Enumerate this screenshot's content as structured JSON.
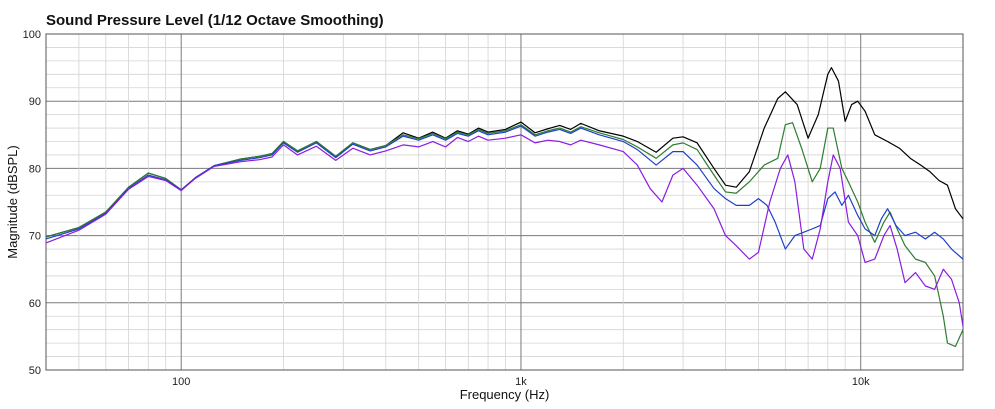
{
  "chart_data": {
    "type": "line",
    "title": "Sound Pressure Level (1/12 Octave Smoothing)",
    "xlabel": "Frequency (Hz)",
    "ylabel": "Magnitude (dBSPL)",
    "x_scale": "log",
    "xlim": [
      40,
      20000
    ],
    "ylim": [
      50,
      100
    ],
    "grid": true,
    "x_tick_labels": [
      {
        "value": 100,
        "label": "100"
      },
      {
        "value": 1000,
        "label": "1k"
      },
      {
        "value": 10000,
        "label": "10k"
      }
    ],
    "y_tick_labels": [
      {
        "value": 50,
        "label": "50"
      },
      {
        "value": 60,
        "label": "60"
      },
      {
        "value": 70,
        "label": "70"
      },
      {
        "value": 80,
        "label": "80"
      },
      {
        "value": 90,
        "label": "90"
      },
      {
        "value": 100,
        "label": "100"
      }
    ],
    "series": [
      {
        "color": "#000000",
        "points": [
          [
            40,
            69.8
          ],
          [
            50,
            71.2
          ],
          [
            60,
            73.5
          ],
          [
            70,
            77.2
          ],
          [
            80,
            79.3
          ],
          [
            90,
            78.5
          ],
          [
            100,
            76.8
          ],
          [
            110,
            78.6
          ],
          [
            125,
            80.4
          ],
          [
            150,
            81.4
          ],
          [
            170,
            81.8
          ],
          [
            185,
            82.2
          ],
          [
            200,
            84.0
          ],
          [
            220,
            82.6
          ],
          [
            250,
            84.0
          ],
          [
            285,
            81.8
          ],
          [
            320,
            83.8
          ],
          [
            360,
            82.8
          ],
          [
            400,
            83.4
          ],
          [
            450,
            85.3
          ],
          [
            500,
            84.5
          ],
          [
            550,
            85.4
          ],
          [
            600,
            84.5
          ],
          [
            650,
            85.6
          ],
          [
            700,
            85.1
          ],
          [
            750,
            86.0
          ],
          [
            800,
            85.4
          ],
          [
            900,
            85.8
          ],
          [
            1000,
            86.9
          ],
          [
            1100,
            85.3
          ],
          [
            1200,
            85.9
          ],
          [
            1300,
            86.4
          ],
          [
            1400,
            85.8
          ],
          [
            1500,
            86.7
          ],
          [
            1700,
            85.6
          ],
          [
            2000,
            84.8
          ],
          [
            2200,
            84.0
          ],
          [
            2500,
            82.4
          ],
          [
            2800,
            84.5
          ],
          [
            3000,
            84.7
          ],
          [
            3300,
            83.8
          ],
          [
            3700,
            80.0
          ],
          [
            4000,
            77.5
          ],
          [
            4300,
            77.2
          ],
          [
            4700,
            79.5
          ],
          [
            5200,
            86.0
          ],
          [
            5700,
            90.4
          ],
          [
            6000,
            91.4
          ],
          [
            6500,
            89.5
          ],
          [
            7000,
            84.5
          ],
          [
            7500,
            88.0
          ],
          [
            8000,
            94.0
          ],
          [
            8200,
            95.0
          ],
          [
            8600,
            93.0
          ],
          [
            9000,
            87.0
          ],
          [
            9400,
            89.5
          ],
          [
            9800,
            90.0
          ],
          [
            10300,
            88.5
          ],
          [
            11000,
            85.0
          ],
          [
            12000,
            84.0
          ],
          [
            13000,
            83.0
          ],
          [
            14000,
            81.5
          ],
          [
            15000,
            80.5
          ],
          [
            16000,
            79.5
          ],
          [
            17000,
            78.2
          ],
          [
            18000,
            77.5
          ],
          [
            19000,
            74.0
          ],
          [
            20000,
            72.5
          ]
        ]
      },
      {
        "color": "#2e7d32",
        "points": [
          [
            40,
            69.8
          ],
          [
            50,
            71.2
          ],
          [
            60,
            73.5
          ],
          [
            70,
            77.2
          ],
          [
            80,
            79.3
          ],
          [
            90,
            78.5
          ],
          [
            100,
            76.8
          ],
          [
            110,
            78.6
          ],
          [
            125,
            80.4
          ],
          [
            150,
            81.4
          ],
          [
            170,
            81.8
          ],
          [
            185,
            82.2
          ],
          [
            200,
            84.0
          ],
          [
            220,
            82.6
          ],
          [
            250,
            84.0
          ],
          [
            285,
            81.8
          ],
          [
            320,
            83.8
          ],
          [
            360,
            82.8
          ],
          [
            400,
            83.4
          ],
          [
            450,
            85.0
          ],
          [
            500,
            84.4
          ],
          [
            550,
            85.2
          ],
          [
            600,
            84.4
          ],
          [
            650,
            85.4
          ],
          [
            700,
            85.0
          ],
          [
            750,
            85.8
          ],
          [
            800,
            85.2
          ],
          [
            900,
            85.6
          ],
          [
            1000,
            86.5
          ],
          [
            1100,
            85.0
          ],
          [
            1200,
            85.6
          ],
          [
            1300,
            86.0
          ],
          [
            1400,
            85.4
          ],
          [
            1500,
            86.2
          ],
          [
            1700,
            85.3
          ],
          [
            2000,
            84.3
          ],
          [
            2200,
            83.2
          ],
          [
            2500,
            81.5
          ],
          [
            2800,
            83.5
          ],
          [
            3000,
            83.8
          ],
          [
            3300,
            82.8
          ],
          [
            3700,
            79.0
          ],
          [
            4000,
            76.5
          ],
          [
            4300,
            76.3
          ],
          [
            4700,
            78.0
          ],
          [
            5200,
            80.5
          ],
          [
            5700,
            81.5
          ],
          [
            6000,
            86.5
          ],
          [
            6300,
            86.8
          ],
          [
            6700,
            83.0
          ],
          [
            7200,
            78.0
          ],
          [
            7600,
            80.0
          ],
          [
            8000,
            86.0
          ],
          [
            8300,
            86.0
          ],
          [
            8800,
            80.0
          ],
          [
            9200,
            78.0
          ],
          [
            9800,
            75.0
          ],
          [
            10300,
            72.0
          ],
          [
            11000,
            69.0
          ],
          [
            11700,
            72.0
          ],
          [
            12200,
            73.5
          ],
          [
            12800,
            71.0
          ],
          [
            13500,
            68.5
          ],
          [
            14500,
            66.5
          ],
          [
            15500,
            66.0
          ],
          [
            16500,
            64.0
          ],
          [
            17000,
            61.0
          ],
          [
            17500,
            58.0
          ],
          [
            18000,
            54.0
          ],
          [
            19000,
            53.5
          ],
          [
            20000,
            56.0
          ]
        ]
      },
      {
        "color": "#1e40c8",
        "points": [
          [
            40,
            69.5
          ],
          [
            50,
            71.0
          ],
          [
            60,
            73.3
          ],
          [
            70,
            77.0
          ],
          [
            80,
            79.0
          ],
          [
            90,
            78.3
          ],
          [
            100,
            76.8
          ],
          [
            110,
            78.6
          ],
          [
            125,
            80.4
          ],
          [
            150,
            81.2
          ],
          [
            170,
            81.6
          ],
          [
            185,
            82.0
          ],
          [
            200,
            83.8
          ],
          [
            220,
            82.4
          ],
          [
            250,
            83.8
          ],
          [
            285,
            81.6
          ],
          [
            320,
            83.6
          ],
          [
            360,
            82.6
          ],
          [
            400,
            83.2
          ],
          [
            450,
            84.8
          ],
          [
            500,
            84.2
          ],
          [
            550,
            85.0
          ],
          [
            600,
            84.2
          ],
          [
            650,
            85.2
          ],
          [
            700,
            84.8
          ],
          [
            750,
            85.6
          ],
          [
            800,
            85.0
          ],
          [
            900,
            85.4
          ],
          [
            1000,
            86.3
          ],
          [
            1100,
            84.8
          ],
          [
            1200,
            85.4
          ],
          [
            1300,
            85.8
          ],
          [
            1400,
            85.2
          ],
          [
            1500,
            86.0
          ],
          [
            1700,
            85.0
          ],
          [
            2000,
            84.0
          ],
          [
            2200,
            82.8
          ],
          [
            2500,
            80.5
          ],
          [
            2800,
            82.5
          ],
          [
            3000,
            82.5
          ],
          [
            3300,
            80.5
          ],
          [
            3700,
            77.0
          ],
          [
            4000,
            75.5
          ],
          [
            4300,
            74.5
          ],
          [
            4700,
            74.5
          ],
          [
            5000,
            75.5
          ],
          [
            5300,
            74.5
          ],
          [
            5600,
            72.0
          ],
          [
            6000,
            68.0
          ],
          [
            6400,
            70.0
          ],
          [
            6800,
            70.5
          ],
          [
            7200,
            71.0
          ],
          [
            7600,
            71.5
          ],
          [
            8000,
            75.5
          ],
          [
            8400,
            76.5
          ],
          [
            8800,
            74.5
          ],
          [
            9200,
            76.0
          ],
          [
            9800,
            73.0
          ],
          [
            10300,
            71.0
          ],
          [
            11000,
            70.0
          ],
          [
            11500,
            72.5
          ],
          [
            12000,
            74.0
          ],
          [
            12700,
            71.5
          ],
          [
            13500,
            70.0
          ],
          [
            14500,
            70.5
          ],
          [
            15500,
            69.5
          ],
          [
            16500,
            70.5
          ],
          [
            17500,
            69.5
          ],
          [
            18500,
            68.0
          ],
          [
            20000,
            66.5
          ]
        ]
      },
      {
        "color": "#8a1de0",
        "points": [
          [
            40,
            68.9
          ],
          [
            50,
            70.8
          ],
          [
            60,
            73.2
          ],
          [
            70,
            76.9
          ],
          [
            80,
            78.8
          ],
          [
            90,
            78.2
          ],
          [
            100,
            76.7
          ],
          [
            110,
            78.5
          ],
          [
            125,
            80.3
          ],
          [
            150,
            81.0
          ],
          [
            170,
            81.3
          ],
          [
            185,
            81.7
          ],
          [
            200,
            83.5
          ],
          [
            220,
            82.0
          ],
          [
            250,
            83.3
          ],
          [
            285,
            81.2
          ],
          [
            320,
            83.0
          ],
          [
            360,
            82.0
          ],
          [
            400,
            82.6
          ],
          [
            450,
            83.5
          ],
          [
            500,
            83.2
          ],
          [
            550,
            84.0
          ],
          [
            600,
            83.2
          ],
          [
            650,
            84.6
          ],
          [
            700,
            84.0
          ],
          [
            750,
            84.8
          ],
          [
            800,
            84.2
          ],
          [
            900,
            84.5
          ],
          [
            1000,
            85.0
          ],
          [
            1100,
            83.8
          ],
          [
            1200,
            84.2
          ],
          [
            1300,
            84.0
          ],
          [
            1400,
            83.5
          ],
          [
            1500,
            84.2
          ],
          [
            1700,
            83.5
          ],
          [
            2000,
            82.5
          ],
          [
            2200,
            80.5
          ],
          [
            2400,
            77.0
          ],
          [
            2600,
            75.0
          ],
          [
            2800,
            79.0
          ],
          [
            3000,
            80.0
          ],
          [
            3300,
            77.5
          ],
          [
            3700,
            74.0
          ],
          [
            4000,
            70.0
          ],
          [
            4300,
            68.5
          ],
          [
            4700,
            66.5
          ],
          [
            5000,
            67.5
          ],
          [
            5400,
            75.0
          ],
          [
            5800,
            80.0
          ],
          [
            6100,
            82.0
          ],
          [
            6400,
            78.0
          ],
          [
            6800,
            68.0
          ],
          [
            7200,
            66.5
          ],
          [
            7600,
            71.0
          ],
          [
            8000,
            78.0
          ],
          [
            8300,
            82.0
          ],
          [
            8700,
            80.0
          ],
          [
            9200,
            72.0
          ],
          [
            9800,
            70.0
          ],
          [
            10300,
            66.0
          ],
          [
            11000,
            66.5
          ],
          [
            11700,
            70.0
          ],
          [
            12200,
            71.5
          ],
          [
            12800,
            68.0
          ],
          [
            13500,
            63.0
          ],
          [
            14500,
            64.5
          ],
          [
            15500,
            62.5
          ],
          [
            16500,
            62.0
          ],
          [
            17500,
            65.0
          ],
          [
            18500,
            63.5
          ],
          [
            19500,
            60.0
          ],
          [
            20000,
            56.5
          ]
        ]
      }
    ]
  }
}
